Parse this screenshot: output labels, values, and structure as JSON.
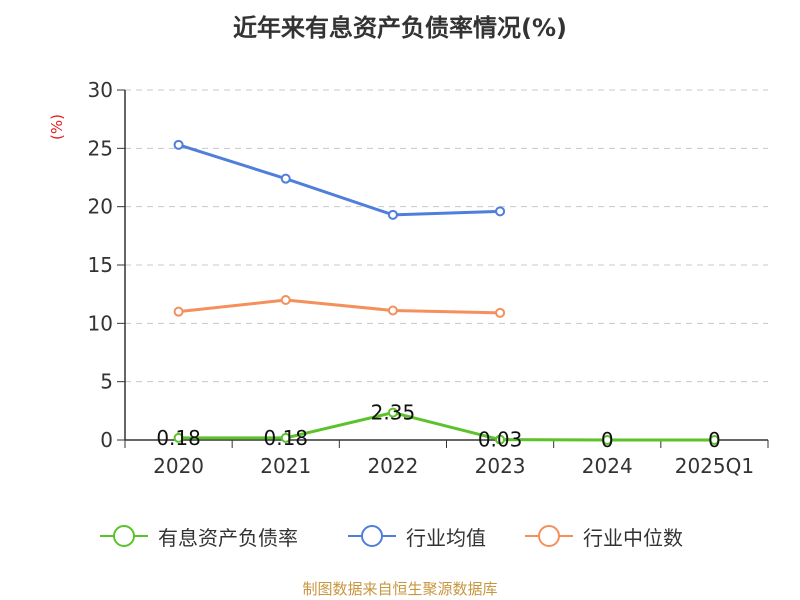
{
  "title": "近年来有息资产负债率情况(%)",
  "source": "制图数据来自恒生聚源数据库",
  "colors": {
    "grid": "#c8c8c8",
    "axis": "#333333",
    "ylabel": "#e02020"
  },
  "chart_data": {
    "type": "line",
    "title": "近年来有息资产负债率情况(%)",
    "ylabel": "(%)",
    "xlabel": "",
    "categories": [
      "2020",
      "2021",
      "2022",
      "2023",
      "2024",
      "2025Q1"
    ],
    "ylim": [
      0,
      30
    ],
    "yticks": [
      0,
      5,
      10,
      15,
      20,
      25,
      30
    ],
    "grid": true,
    "legend_position": "bottom",
    "series": [
      {
        "name": "有息资产负债率",
        "color": "#5cc22a",
        "values": [
          0.18,
          0.18,
          2.35,
          0.03,
          0,
          0
        ],
        "labels": [
          "0.18",
          "0.18",
          "2.35",
          "0.03",
          "0",
          "0"
        ]
      },
      {
        "name": "行业均值",
        "color": "#4f7fdb",
        "values": [
          25.3,
          22.4,
          19.3,
          19.6,
          null,
          null
        ]
      },
      {
        "name": "行业中位数",
        "color": "#f4905c",
        "values": [
          11.0,
          12.0,
          11.1,
          10.9,
          null,
          null
        ]
      }
    ]
  }
}
